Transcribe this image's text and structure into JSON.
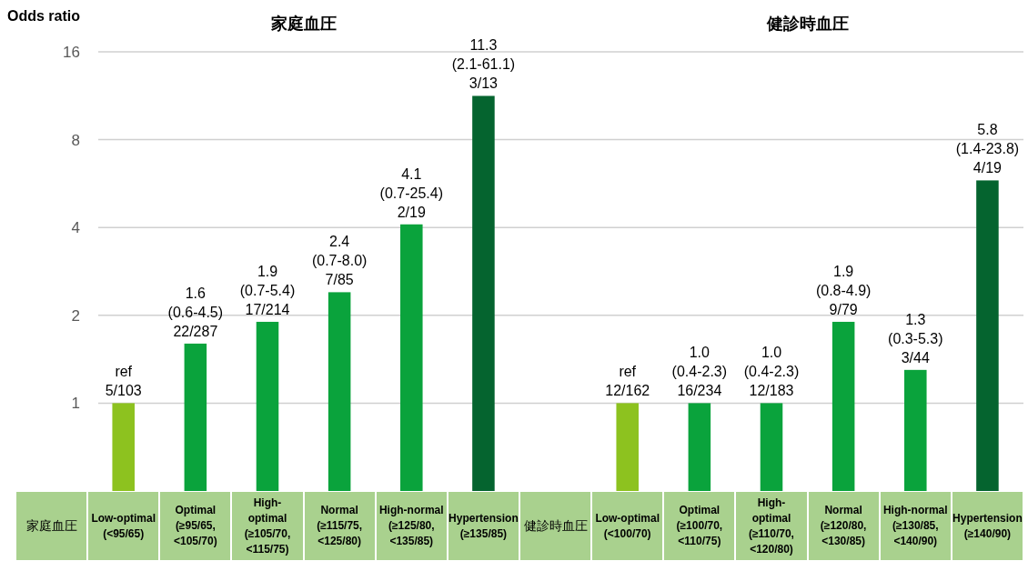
{
  "chart_data": {
    "type": "bar",
    "ylabel": "Odds ratio",
    "annotations": [
      "家庭血圧",
      "健診時血圧"
    ],
    "categories": [
      "家庭血圧",
      "Low-optimal (<95/65)",
      "Optimal (≥95/65, <105/70)",
      "High-optimal (≥105/70, <115/75)",
      "Normal (≥115/75, <125/80)",
      "High-normal (≥125/80, <135/85)",
      "Hypertension (≥135/85)",
      "健診時血圧",
      "Low-optimal (<100/70)",
      "Optimal (≥100/70, <110/75)",
      "High-optimal (≥110/70, <120/80)",
      "Normal (≥120/80, <130/85)",
      "High-normal (≥130/85, <140/90)",
      "Hypertension (≥140/90)"
    ],
    "values": [
      null,
      1,
      1.6,
      1.9,
      2.4,
      4.1,
      11.3,
      null,
      1,
      1.0,
      1.0,
      1.9,
      1.3,
      5.8
    ],
    "colors": [
      null,
      "#8dc21f",
      "#0aa33c",
      "#0aa33c",
      "#0aa33c",
      "#0aa33c",
      "#05642f",
      null,
      "#8dc21f",
      "#0aa33c",
      "#0aa33c",
      "#0aa33c",
      "#0aa33c",
      "#05642f"
    ],
    "value_labels": [
      null,
      "ref\n5/103",
      "1.6\n(0.6-4.5)\n22/287",
      "1.9\n(0.7-5.4)\n17/214",
      "2.4\n(0.7-8.0)\n7/85",
      "4.1\n(0.7-25.4)\n2/19",
      "11.3\n(2.1-61.1)\n3/13",
      null,
      "ref\n12/162",
      "1.0\n(0.4-2.3)\n16/234",
      "1.0\n(0.4-2.3)\n12/183",
      "1.9\n(0.8-4.9)\n9/79",
      "1.3\n(0.3-5.3)\n3/44",
      "5.8\n(1.4-23.8)\n4/19"
    ],
    "log": true,
    "ylim": [
      0.5,
      16
    ],
    "yticks": [
      1,
      2,
      4,
      8,
      16
    ],
    "grid": "y"
  }
}
